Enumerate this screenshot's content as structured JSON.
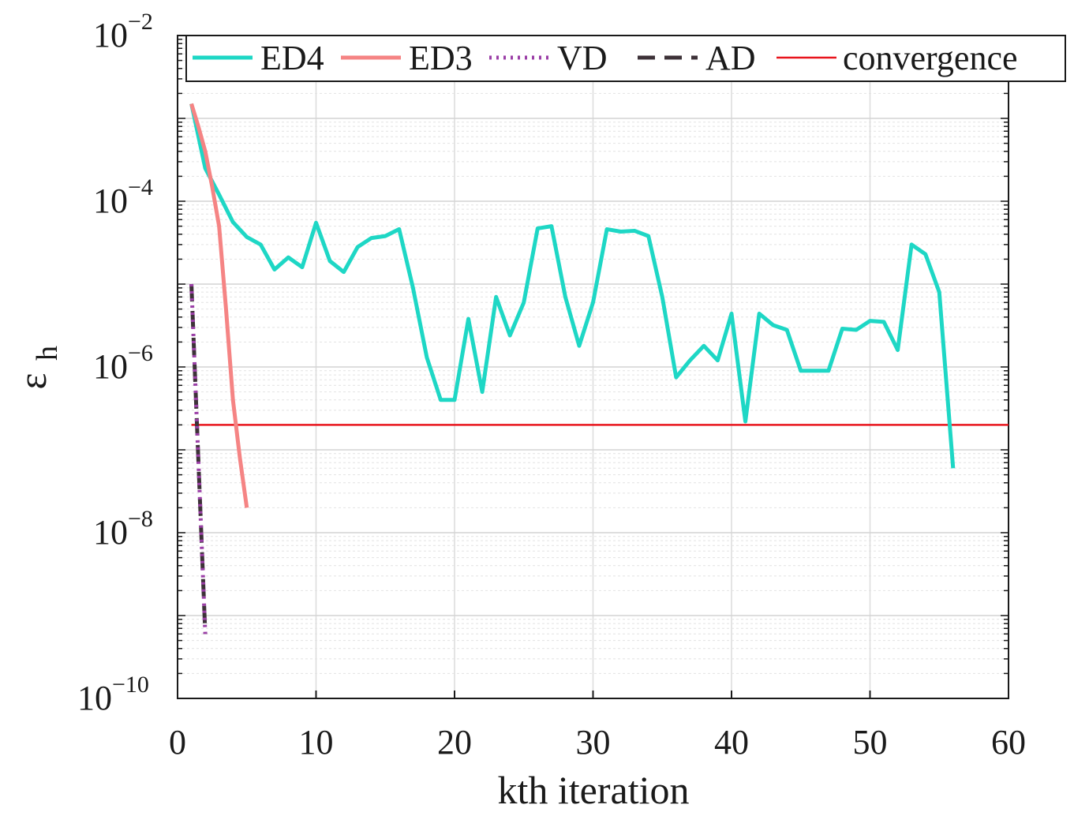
{
  "chart_data": {
    "type": "line",
    "title": "",
    "xlabel": "kth iteration",
    "ylabel": "ε",
    "ylabel_sub": "h",
    "yscale": "log",
    "xlim": [
      0,
      60
    ],
    "ylim": [
      1e-10,
      0.01
    ],
    "x_ticks": [
      "0",
      "10",
      "20",
      "30",
      "40",
      "50",
      "60"
    ],
    "y_ticks": [
      {
        "base": "10",
        "exp": "−2"
      },
      {
        "base": "10",
        "exp": "−4"
      },
      {
        "base": "10",
        "exp": "−6"
      },
      {
        "base": "10",
        "exp": "−8"
      },
      {
        "base": "10",
        "exp": "−10"
      }
    ],
    "grid": true,
    "legend_position": "top",
    "series": [
      {
        "name": "ED4",
        "color": "#1ed7c5",
        "style": "solid",
        "width": 5,
        "x": [
          1,
          2,
          3,
          4,
          5,
          6,
          7,
          8,
          9,
          10,
          11,
          12,
          13,
          14,
          15,
          16,
          17,
          18,
          19,
          20,
          21,
          22,
          23,
          24,
          25,
          26,
          27,
          28,
          29,
          30,
          31,
          32,
          33,
          34,
          35,
          36,
          37,
          38,
          39,
          40,
          41,
          42,
          43,
          44,
          45,
          46,
          47,
          48,
          49,
          50,
          51,
          52,
          53,
          54,
          55,
          56
        ],
        "y": [
          0.0015,
          0.00025,
          0.00012,
          5.6e-05,
          3.7e-05,
          3e-05,
          1.5e-05,
          2.1e-05,
          1.6e-05,
          5.5e-05,
          1.9e-05,
          1.4e-05,
          2.8e-05,
          3.6e-05,
          3.8e-05,
          4.6e-05,
          9e-06,
          1.3e-06,
          4e-07,
          4e-07,
          3.8e-06,
          5e-07,
          7e-06,
          2.4e-06,
          6e-06,
          4.7e-05,
          5e-05,
          7e-06,
          1.8e-06,
          6e-06,
          4.6e-05,
          4.3e-05,
          4.4e-05,
          3.8e-05,
          7e-06,
          7.5e-07,
          1.2e-06,
          1.8e-06,
          1.2e-06,
          4.4e-06,
          2.2e-07,
          4.4e-06,
          3.2e-06,
          2.8e-06,
          9e-07,
          9e-07,
          9e-07,
          2.9e-06,
          2.8e-06,
          3.6e-06,
          3.5e-06,
          1.6e-06,
          3e-05,
          2.3e-05,
          8e-06,
          6e-08
        ]
      },
      {
        "name": "ED3",
        "color": "#f58484",
        "style": "solid",
        "width": 5,
        "x": [
          1,
          1.5,
          2,
          2.5,
          3,
          3.5,
          4,
          4.5,
          5
        ],
        "y": [
          0.0015,
          0.0008,
          0.0004,
          0.00015,
          5e-05,
          5e-06,
          4e-07,
          8e-08,
          2e-08
        ]
      },
      {
        "name": "VD",
        "color": "#9b3fa7",
        "style": "dotted",
        "width": 5,
        "x": [
          1,
          2
        ],
        "y": [
          1e-05,
          6e-10
        ]
      },
      {
        "name": "AD",
        "color": "#3d3238",
        "style": "dashed",
        "width": 5,
        "x": [
          1,
          2
        ],
        "y": [
          1e-05,
          6e-10
        ]
      },
      {
        "name": "convergence",
        "color": "#e8141c",
        "style": "solid",
        "width": 2.5,
        "x": [
          1,
          60
        ],
        "y": [
          2e-07,
          2e-07
        ]
      }
    ]
  }
}
